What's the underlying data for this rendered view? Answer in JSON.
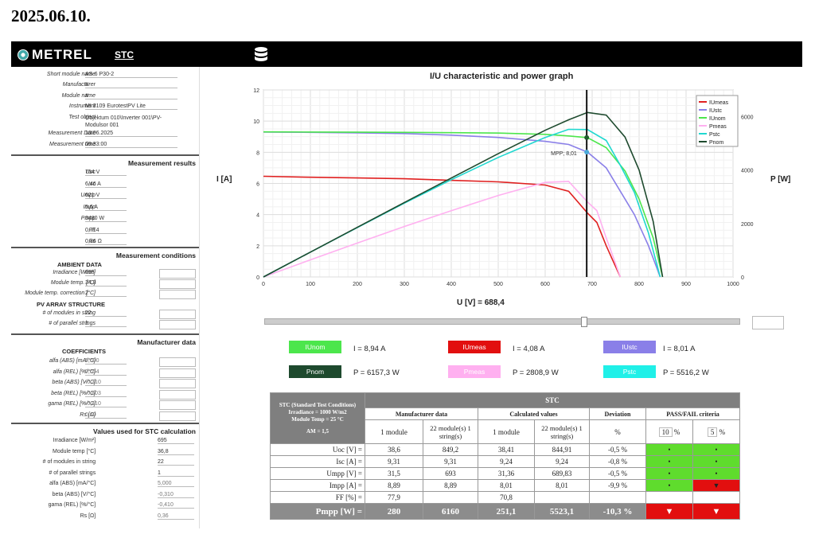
{
  "date": "2025.06.10.",
  "app": {
    "logo": "METREL",
    "tab": "STC"
  },
  "module_info": [
    {
      "label": "Short module name",
      "value": "AS-6 P30-2"
    },
    {
      "label": "Manufacturer",
      "value": "#"
    },
    {
      "label": "Module name",
      "value": "#"
    },
    {
      "label": "Instrument",
      "value": "MI 3109 EurotestPV Lite"
    },
    {
      "label": "Test object",
      "value": "Objektum 010\\Inverter 001\\PV-Modulsor 001"
    },
    {
      "label": "Measurement Date",
      "value": "10.06.2025"
    },
    {
      "label": "Measurement time",
      "value": "09:33:00"
    }
  ],
  "results": {
    "title": "Measurement results",
    "rows": [
      {
        "label": "Uoc",
        "value": "754 V"
      },
      {
        "label": "Isc",
        "value": "6,46 A"
      },
      {
        "label": "Umpp",
        "value": "621 V"
      },
      {
        "label": "Impp",
        "value": "5,6 A"
      },
      {
        "label": "Pmpp",
        "value": "3480 W"
      },
      {
        "label": "FF",
        "value": "0,714"
      },
      {
        "label": "Rs",
        "value": "0,36 Ω"
      }
    ]
  },
  "conditions": {
    "title": "Measurement conditions",
    "ambient_title": "AMBIENT DATA",
    "ambient": [
      {
        "label": "Irradiance [W/m²]",
        "value": "695"
      },
      {
        "label": "Module temp. [°C]",
        "value": "34,8"
      },
      {
        "label": "Module temp. correction [°C]",
        "value": "2"
      }
    ],
    "array_title": "PV ARRAY STRUCTURE",
    "array": [
      {
        "label": "# of modules in string",
        "value": "22"
      },
      {
        "label": "# of parallel strings",
        "value": "1"
      }
    ]
  },
  "manufacturer": {
    "title": "Manufacturer data",
    "coef_title": "COEFFICIENTS",
    "rows": [
      {
        "label": "alfa (ABS) [mA/°C]",
        "value": "5,000"
      },
      {
        "label": "alfa (REL) [%/°C]",
        "value": "0,054"
      },
      {
        "label": "beta (ABS) [V/°C]",
        "value": "-0,310"
      },
      {
        "label": "beta (REL) [%/°C]",
        "value": "-0,803"
      },
      {
        "label": "gama (REL) [%/°C]",
        "value": "-0,410"
      },
      {
        "label": "Rs [Ω]",
        "value": "0,40"
      }
    ]
  },
  "stc_values": {
    "title": "Values used for STC calculation",
    "rows": [
      {
        "label": "Irradiance [W/m²]",
        "value": "695"
      },
      {
        "label": "Module temp [°C]",
        "value": "36,8"
      },
      {
        "label": "# of modules in string",
        "value": "22"
      },
      {
        "label": "# of parallel strings",
        "value": "1"
      },
      {
        "label": "alfa (ABS) [mA/°C]",
        "value": "5,000"
      },
      {
        "label": "beta (ABS) [V/°C]",
        "value": "-0,310"
      },
      {
        "label": "gama (REL) [%/°C]",
        "value": "-0,410"
      },
      {
        "label": "Rs [Ω]",
        "value": "0,36"
      }
    ]
  },
  "chart_data": {
    "type": "line",
    "title": "I/U characteristic and power graph",
    "ylabel": "I [A]",
    "y2label": "P [W]",
    "xlabel": "U [V] = 688,4",
    "xlim": [
      0,
      1000
    ],
    "ylim": [
      0,
      12
    ],
    "y2lim": [
      0,
      7000
    ],
    "xticks": [
      "0",
      "100",
      "200",
      "300",
      "400",
      "500",
      "600",
      "700",
      "800",
      "900",
      "1000"
    ],
    "yticks": [
      "0",
      "2",
      "4",
      "6",
      "8",
      "10",
      "12"
    ],
    "y2ticks": [
      "0",
      "2000",
      "4000",
      "6000"
    ],
    "cursor_x": 688.4,
    "mpp_label": "MPP; 8,01",
    "legend": [
      "IUmeas",
      "IUstc",
      "IUnom",
      "Pmeas",
      "Pstc",
      "Pnom"
    ],
    "series": [
      {
        "name": "IUmeas",
        "color": "#e02020",
        "axis": "I",
        "x": [
          0,
          100,
          200,
          300,
          400,
          500,
          600,
          650,
          690,
          710,
          730,
          745,
          760
        ],
        "y": [
          6.46,
          6.4,
          6.35,
          6.3,
          6.2,
          6.1,
          5.9,
          5.5,
          4.1,
          3.5,
          2.0,
          1.0,
          0
        ]
      },
      {
        "name": "IUstc",
        "color": "#8a7fe8",
        "axis": "I",
        "x": [
          0,
          100,
          200,
          300,
          400,
          500,
          600,
          650,
          690,
          730,
          760,
          790,
          820,
          845
        ],
        "y": [
          9.3,
          9.28,
          9.25,
          9.2,
          9.1,
          8.95,
          8.7,
          8.5,
          8.01,
          7.0,
          5.5,
          4.0,
          2.0,
          0
        ]
      },
      {
        "name": "IUnom",
        "color": "#4ce64c",
        "axis": "I",
        "x": [
          0,
          100,
          200,
          300,
          400,
          500,
          600,
          650,
          690,
          730,
          770,
          800,
          830,
          850
        ],
        "y": [
          9.31,
          9.3,
          9.29,
          9.28,
          9.26,
          9.23,
          9.15,
          9.05,
          8.94,
          8.3,
          6.8,
          5.0,
          2.5,
          0
        ]
      },
      {
        "name": "Pmeas",
        "color": "#ffb0f0",
        "axis": "P",
        "x": [
          0,
          100,
          200,
          300,
          400,
          500,
          600,
          650,
          690,
          710,
          730,
          745,
          760
        ],
        "y": [
          0,
          640,
          1270,
          1890,
          2480,
          3050,
          3540,
          3575,
          2809,
          2485,
          1460,
          745,
          0
        ]
      },
      {
        "name": "Pstc",
        "color": "#20d8d0",
        "axis": "P",
        "x": [
          0,
          100,
          200,
          300,
          400,
          500,
          600,
          650,
          690,
          730,
          760,
          790,
          820,
          845
        ],
        "y": [
          0,
          928,
          1850,
          2760,
          3640,
          4475,
          5220,
          5525,
          5516,
          5110,
          4180,
          3160,
          1640,
          0
        ]
      },
      {
        "name": "Pnom",
        "color": "#1e4a2e",
        "axis": "P",
        "x": [
          0,
          100,
          200,
          300,
          400,
          500,
          600,
          650,
          690,
          730,
          770,
          800,
          830,
          850
        ],
        "y": [
          0,
          930,
          1858,
          2784,
          3704,
          4615,
          5490,
          5883,
          6157,
          6059,
          5236,
          4000,
          2075,
          0
        ]
      }
    ]
  },
  "cursor_values": [
    {
      "name": "IUnom",
      "label": "IUnom",
      "text": "I  =  8,94 A",
      "color": "#4ce64c"
    },
    {
      "name": "IUmeas",
      "label": "IUmeas",
      "text": "I  =  4,08 A",
      "color": "#e20f0f"
    },
    {
      "name": "IUstc",
      "label": "IUstc",
      "text": "I  =  8,01 A",
      "color": "#8a7fe8"
    },
    {
      "name": "Pnom",
      "label": "Pnom",
      "text": "P  =  6157,3 W",
      "color": "#1e4a2e"
    },
    {
      "name": "Pmeas",
      "label": "Pmeas",
      "text": "P  =  2808,9 W",
      "color": "#ffb0f0"
    },
    {
      "name": "Pstc",
      "label": "Pstc",
      "text": "P  =  5516,2 W",
      "color": "#20f0e8"
    }
  ],
  "table": {
    "stc_header": "STC (Standard Test Conditions)",
    "irr": "Irradiance = 1000 W/m2",
    "temp": "Module Temp = 25 °C",
    "am": "AM = 1,5",
    "stc": "STC",
    "mfr": "Manufacturer data",
    "calc": "Calculated values",
    "dev": "Deviation",
    "pf": "PASS/FAIL criteria",
    "one_module": "1 module",
    "strings": "22 module(s) 1 string(s)",
    "pct": "%",
    "crit1": "10",
    "crit2": "5",
    "rows": [
      {
        "label": "Uoc [V] =",
        "m1": "38,6",
        "m22": "849,2",
        "c1": "38,41",
        "c22": "844,91",
        "dev": "-0,5  %",
        "p1": "•",
        "p2": "•"
      },
      {
        "label": "Isc [A] =",
        "m1": "9,31",
        "m22": "9,31",
        "c1": "9,24",
        "c22": "9,24",
        "dev": "-0,8  %",
        "p1": "•",
        "p2": "•"
      },
      {
        "label": "Umpp [V] =",
        "m1": "31,5",
        "m22": "693",
        "c1": "31,36",
        "c22": "689,83",
        "dev": "-0,5  %",
        "p1": "•",
        "p2": "•"
      },
      {
        "label": "Impp [A] =",
        "m1": "8,89",
        "m22": "8,89",
        "c1": "8,01",
        "c22": "8,01",
        "dev": "-9,9  %",
        "p1": "•",
        "p2": "▼"
      },
      {
        "label": "FF [%] =",
        "m1": "77,9",
        "m22": "",
        "c1": "70,8",
        "c22": "",
        "dev": "",
        "p1": "",
        "p2": ""
      }
    ],
    "pmpp": {
      "label": "Pmpp [W] =",
      "m1": "280",
      "m22": "6160",
      "c1": "251,1",
      "c22": "5523,1",
      "dev": "-10,3  %",
      "p1": "▼",
      "p2": "▼"
    }
  }
}
